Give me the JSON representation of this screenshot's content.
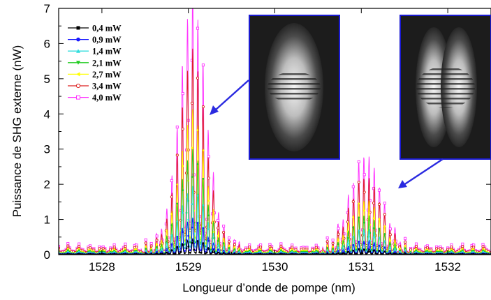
{
  "chart_data": {
    "type": "line",
    "title": "",
    "xlabel": "Longueur d’onde de pompe (nm)",
    "ylabel": "Puissance de SHG externe (nW)",
    "xlim": [
      1527.5,
      1532.5
    ],
    "ylim": [
      0,
      7
    ],
    "xticks": [
      1528,
      1529,
      1530,
      1531,
      1532
    ],
    "yticks": [
      0,
      1,
      2,
      3,
      4,
      5,
      6,
      7
    ],
    "grid": false,
    "legend": "top-left",
    "series": [
      {
        "name": "0,4 mW",
        "color": "#000000",
        "marker": "square-filled",
        "scale": 0.06
      },
      {
        "name": "0,9 mW",
        "color": "#1a1aff",
        "marker": "circle-filled",
        "scale": 0.14
      },
      {
        "name": "1,4 mW",
        "color": "#33dddd",
        "marker": "triangle-up-filled",
        "scale": 0.26
      },
      {
        "name": "2,1 mW",
        "color": "#22cc22",
        "marker": "triangle-down-filled",
        "scale": 0.4
      },
      {
        "name": "2,7 mW",
        "color": "#ffff00",
        "marker": "triangle-left-filled",
        "scale": 0.55
      },
      {
        "name": "3,4 mW",
        "color": "#dd2222",
        "marker": "circle-open",
        "scale": 0.78
      },
      {
        "name": "4,0 mW",
        "color": "#ff33ff",
        "marker": "square-open",
        "scale": 1.0
      }
    ],
    "envelope_4mW": {
      "baseline": 0.2,
      "peak1": {
        "center": 1529.05,
        "max": 6.6,
        "range": [
          1528.45,
          1529.6
        ]
      },
      "peak2": {
        "center": 1531.05,
        "max": 2.35,
        "range": [
          1530.55,
          1531.6
        ]
      },
      "ripple_period_nm": 0.06
    },
    "insets": [
      {
        "name": "inset-image-left",
        "depicts": "far-field SHG pattern with horizontal fringes"
      },
      {
        "name": "inset-image-right",
        "depicts": "far-field SHG pattern with two lobes and fringes"
      }
    ],
    "arrow_color": "#2a2ae0"
  }
}
